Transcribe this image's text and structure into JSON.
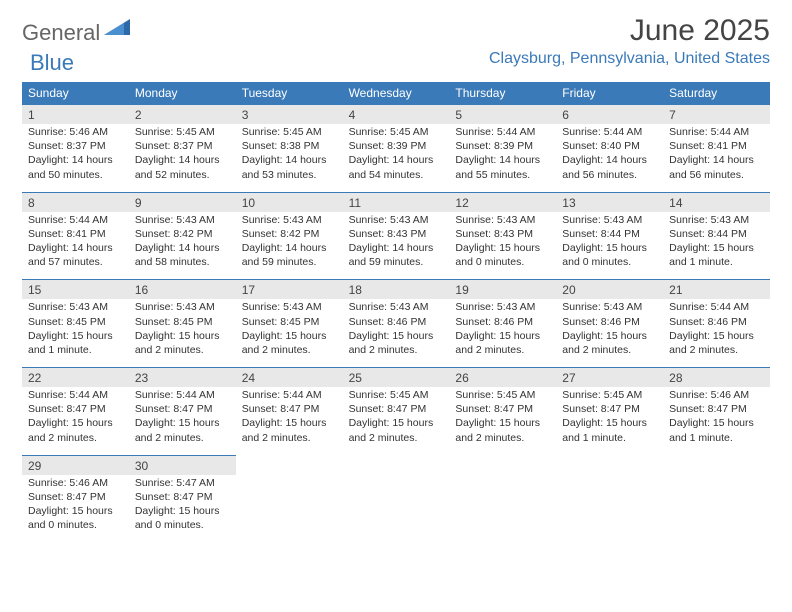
{
  "brand": {
    "part1": "General",
    "part2": "Blue"
  },
  "title": "June 2025",
  "location": "Claysburg, Pennsylvania, United States",
  "colors": {
    "header_bg": "#3a7ab8",
    "daynum_bg": "#e8e8e8",
    "text": "#333333",
    "accent": "#3a7ab8"
  },
  "day_labels": [
    "Sunday",
    "Monday",
    "Tuesday",
    "Wednesday",
    "Thursday",
    "Friday",
    "Saturday"
  ],
  "days": [
    {
      "n": 1,
      "sr": "5:46 AM",
      "ss": "8:37 PM",
      "dl": "14 hours and 50 minutes."
    },
    {
      "n": 2,
      "sr": "5:45 AM",
      "ss": "8:37 PM",
      "dl": "14 hours and 52 minutes."
    },
    {
      "n": 3,
      "sr": "5:45 AM",
      "ss": "8:38 PM",
      "dl": "14 hours and 53 minutes."
    },
    {
      "n": 4,
      "sr": "5:45 AM",
      "ss": "8:39 PM",
      "dl": "14 hours and 54 minutes."
    },
    {
      "n": 5,
      "sr": "5:44 AM",
      "ss": "8:39 PM",
      "dl": "14 hours and 55 minutes."
    },
    {
      "n": 6,
      "sr": "5:44 AM",
      "ss": "8:40 PM",
      "dl": "14 hours and 56 minutes."
    },
    {
      "n": 7,
      "sr": "5:44 AM",
      "ss": "8:41 PM",
      "dl": "14 hours and 56 minutes."
    },
    {
      "n": 8,
      "sr": "5:44 AM",
      "ss": "8:41 PM",
      "dl": "14 hours and 57 minutes."
    },
    {
      "n": 9,
      "sr": "5:43 AM",
      "ss": "8:42 PM",
      "dl": "14 hours and 58 minutes."
    },
    {
      "n": 10,
      "sr": "5:43 AM",
      "ss": "8:42 PM",
      "dl": "14 hours and 59 minutes."
    },
    {
      "n": 11,
      "sr": "5:43 AM",
      "ss": "8:43 PM",
      "dl": "14 hours and 59 minutes."
    },
    {
      "n": 12,
      "sr": "5:43 AM",
      "ss": "8:43 PM",
      "dl": "15 hours and 0 minutes."
    },
    {
      "n": 13,
      "sr": "5:43 AM",
      "ss": "8:44 PM",
      "dl": "15 hours and 0 minutes."
    },
    {
      "n": 14,
      "sr": "5:43 AM",
      "ss": "8:44 PM",
      "dl": "15 hours and 1 minute."
    },
    {
      "n": 15,
      "sr": "5:43 AM",
      "ss": "8:45 PM",
      "dl": "15 hours and 1 minute."
    },
    {
      "n": 16,
      "sr": "5:43 AM",
      "ss": "8:45 PM",
      "dl": "15 hours and 2 minutes."
    },
    {
      "n": 17,
      "sr": "5:43 AM",
      "ss": "8:45 PM",
      "dl": "15 hours and 2 minutes."
    },
    {
      "n": 18,
      "sr": "5:43 AM",
      "ss": "8:46 PM",
      "dl": "15 hours and 2 minutes."
    },
    {
      "n": 19,
      "sr": "5:43 AM",
      "ss": "8:46 PM",
      "dl": "15 hours and 2 minutes."
    },
    {
      "n": 20,
      "sr": "5:43 AM",
      "ss": "8:46 PM",
      "dl": "15 hours and 2 minutes."
    },
    {
      "n": 21,
      "sr": "5:44 AM",
      "ss": "8:46 PM",
      "dl": "15 hours and 2 minutes."
    },
    {
      "n": 22,
      "sr": "5:44 AM",
      "ss": "8:47 PM",
      "dl": "15 hours and 2 minutes."
    },
    {
      "n": 23,
      "sr": "5:44 AM",
      "ss": "8:47 PM",
      "dl": "15 hours and 2 minutes."
    },
    {
      "n": 24,
      "sr": "5:44 AM",
      "ss": "8:47 PM",
      "dl": "15 hours and 2 minutes."
    },
    {
      "n": 25,
      "sr": "5:45 AM",
      "ss": "8:47 PM",
      "dl": "15 hours and 2 minutes."
    },
    {
      "n": 26,
      "sr": "5:45 AM",
      "ss": "8:47 PM",
      "dl": "15 hours and 2 minutes."
    },
    {
      "n": 27,
      "sr": "5:45 AM",
      "ss": "8:47 PM",
      "dl": "15 hours and 1 minute."
    },
    {
      "n": 28,
      "sr": "5:46 AM",
      "ss": "8:47 PM",
      "dl": "15 hours and 1 minute."
    },
    {
      "n": 29,
      "sr": "5:46 AM",
      "ss": "8:47 PM",
      "dl": "15 hours and 0 minutes."
    },
    {
      "n": 30,
      "sr": "5:47 AM",
      "ss": "8:47 PM",
      "dl": "15 hours and 0 minutes."
    }
  ],
  "labels": {
    "sunrise": "Sunrise:",
    "sunset": "Sunset:",
    "daylight": "Daylight:"
  }
}
